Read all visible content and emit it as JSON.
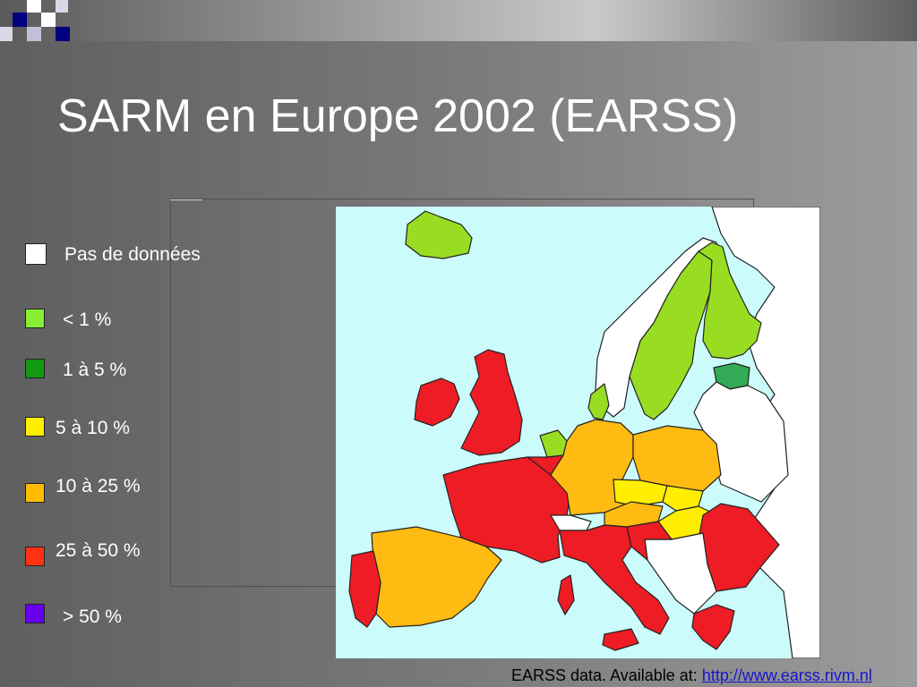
{
  "title": "SARM en Europe 2002 (EARSS)",
  "legend": [
    {
      "label": "Pas de données",
      "color": "#ffffff"
    },
    {
      "label": "< 1 %",
      "color": "#88ee33"
    },
    {
      "label": "1 à 5 %",
      "color": "#119911"
    },
    {
      "label": "5 à 10 %",
      "color": "#ffee00"
    },
    {
      "label": "10 à 25 %",
      "color": "#ffbb00"
    },
    {
      "label": "25 à 50 %",
      "color": "#ff3311"
    },
    {
      "label": "> 50 %",
      "color": "#6600ee"
    }
  ],
  "map": {
    "sea_color": "#ccfbfb",
    "country_colors": {
      "no_data": "#ffffff",
      "lt1": "#99dd22",
      "b1_5": "#33aa55",
      "b5_10": "#ffee00",
      "b10_25": "#ffbb11",
      "b25_50": "#ee1c24"
    }
  },
  "source": {
    "prefix": "EARSS data. Available at: ",
    "link_text": "http://www.earss.rivm.nl"
  }
}
